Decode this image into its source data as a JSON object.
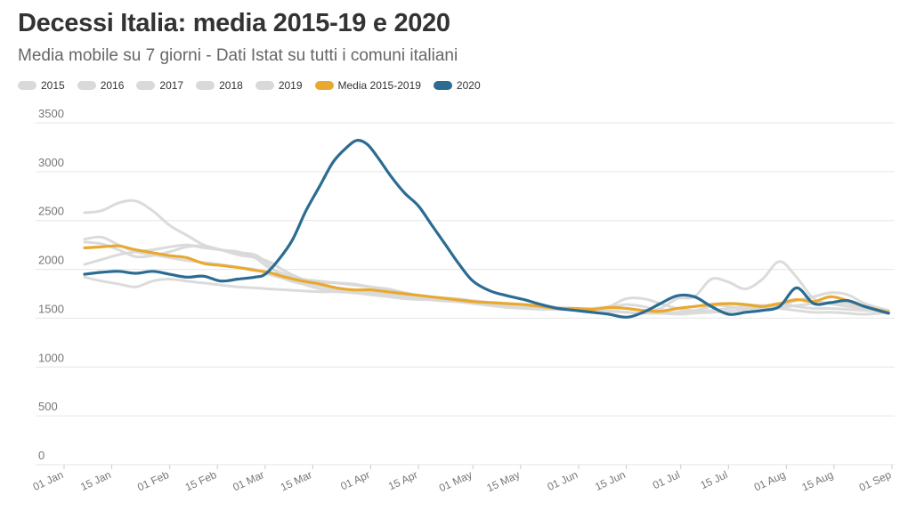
{
  "title": "Decessi Italia: media 2015-19 e 2020",
  "subtitle": "Media mobile su 7 giorni - Dati Istat su tutti i comuni italiani",
  "colors": {
    "background_series": "#d9d9d9",
    "average": "#e8a930",
    "year2020": "#2c6b92",
    "grid": "#e6e6e6",
    "text": "#777777"
  },
  "legend": [
    {
      "label": "2015",
      "color": "#d9d9d9"
    },
    {
      "label": "2016",
      "color": "#d9d9d9"
    },
    {
      "label": "2017",
      "color": "#d9d9d9"
    },
    {
      "label": "2018",
      "color": "#d9d9d9"
    },
    {
      "label": "2019",
      "color": "#d9d9d9"
    },
    {
      "label": "Media 2015-2019",
      "color": "#e8a930"
    },
    {
      "label": "2020",
      "color": "#2c6b92"
    }
  ],
  "chart_data": {
    "type": "line",
    "title": "Decessi Italia: media 2015-19 e 2020",
    "subtitle": "Media mobile su 7 giorni - Dati Istat su tutti i comuni italiani",
    "xlabel": "",
    "ylabel": "",
    "ylim": [
      0,
      3500
    ],
    "yticks": [
      0,
      500,
      1000,
      1500,
      2000,
      2500,
      3000,
      3500
    ],
    "xlim": [
      "01 Jan",
      "01 Sep"
    ],
    "xticks": [
      "01 Jan",
      "15 Jan",
      "01 Feb",
      "15 Feb",
      "01 Mar",
      "15 Mar",
      "01 Apr",
      "15 Apr",
      "01 May",
      "15 May",
      "01 Jun",
      "15 Jun",
      "01 Jul",
      "15 Jul",
      "01 Aug",
      "15 Aug",
      "01 Sep"
    ],
    "grid": true,
    "legend_position": "top-left",
    "series": [
      {
        "name": "2015",
        "color": "#d9d9d9",
        "x": [
          "07 Jan",
          "12 Jan",
          "17 Jan",
          "22 Jan",
          "27 Jan",
          "01 Feb",
          "06 Feb",
          "11 Feb",
          "16 Feb",
          "21 Feb",
          "26 Feb",
          "02 Mar",
          "07 Mar",
          "12 Mar",
          "17 Mar",
          "22 Mar",
          "27 Mar",
          "01 Apr",
          "06 Apr",
          "11 Apr",
          "16 Apr",
          "21 Apr",
          "26 Apr",
          "01 May",
          "06 May",
          "11 May",
          "16 May",
          "21 May",
          "26 May",
          "31 May",
          "05 Jun",
          "10 Jun",
          "15 Jun",
          "20 Jun",
          "25 Jun",
          "30 Jun",
          "05 Jul",
          "10 Jul",
          "15 Jul",
          "20 Jul",
          "25 Jul",
          "30 Jul",
          "04 Aug",
          "09 Aug",
          "14 Aug",
          "19 Aug",
          "24 Aug",
          "31 Aug"
        ],
        "values": [
          2580,
          2600,
          2680,
          2700,
          2600,
          2450,
          2350,
          2250,
          2200,
          2180,
          2120,
          2020,
          1950,
          1900,
          1880,
          1860,
          1840,
          1820,
          1800,
          1760,
          1720,
          1690,
          1670,
          1650,
          1630,
          1610,
          1600,
          1590,
          1590,
          1590,
          1600,
          1610,
          1600,
          1580,
          1600,
          1700,
          1720,
          1900,
          1870,
          1800,
          1900,
          2080,
          1920,
          1700,
          1650,
          1620,
          1600,
          1580
        ]
      },
      {
        "name": "2016",
        "color": "#d9d9d9",
        "x": [
          "07 Jan",
          "12 Jan",
          "17 Jan",
          "22 Jan",
          "27 Jan",
          "01 Feb",
          "06 Feb",
          "11 Feb",
          "16 Feb",
          "21 Feb",
          "26 Feb",
          "02 Mar",
          "07 Mar",
          "12 Mar",
          "17 Mar",
          "22 Mar",
          "27 Mar",
          "01 Apr",
          "06 Apr",
          "11 Apr",
          "16 Apr",
          "21 Apr",
          "26 Apr",
          "01 May",
          "06 May",
          "11 May",
          "16 May",
          "21 May",
          "26 May",
          "31 May",
          "05 Jun",
          "10 Jun",
          "15 Jun",
          "20 Jun",
          "25 Jun",
          "30 Jun",
          "05 Jul",
          "10 Jul",
          "15 Jul",
          "20 Jul",
          "25 Jul",
          "30 Jul",
          "04 Aug",
          "09 Aug",
          "14 Aug",
          "19 Aug",
          "24 Aug",
          "31 Aug"
        ],
        "values": [
          1920,
          1880,
          1850,
          1820,
          1880,
          1900,
          1880,
          1860,
          1840,
          1820,
          1810,
          1800,
          1790,
          1780,
          1770,
          1770,
          1760,
          1740,
          1720,
          1700,
          1690,
          1690,
          1680,
          1660,
          1640,
          1630,
          1620,
          1610,
          1600,
          1590,
          1580,
          1570,
          1560,
          1550,
          1550,
          1560,
          1570,
          1580,
          1600,
          1620,
          1620,
          1600,
          1580,
          1560,
          1560,
          1550,
          1540,
          1560
        ]
      },
      {
        "name": "2017",
        "color": "#d9d9d9",
        "x": [
          "07 Jan",
          "12 Jan",
          "17 Jan",
          "22 Jan",
          "27 Jan",
          "01 Feb",
          "06 Feb",
          "11 Feb",
          "16 Feb",
          "21 Feb",
          "26 Feb",
          "02 Mar",
          "07 Mar",
          "12 Mar",
          "17 Mar",
          "22 Mar",
          "27 Mar",
          "01 Apr",
          "06 Apr",
          "11 Apr",
          "16 Apr",
          "21 Apr",
          "26 Apr",
          "01 May",
          "06 May",
          "11 May",
          "16 May",
          "21 May",
          "26 May",
          "31 May",
          "05 Jun",
          "10 Jun",
          "15 Jun",
          "20 Jun",
          "25 Jun",
          "30 Jun",
          "05 Jul",
          "10 Jul",
          "15 Jul",
          "20 Jul",
          "25 Jul",
          "30 Jul",
          "04 Aug",
          "09 Aug",
          "14 Aug",
          "19 Aug",
          "24 Aug",
          "31 Aug"
        ],
        "values": [
          2310,
          2330,
          2250,
          2180,
          2150,
          2120,
          2090,
          2070,
          2050,
          2020,
          2000,
          1950,
          1900,
          1860,
          1830,
          1800,
          1780,
          1760,
          1740,
          1720,
          1700,
          1680,
          1670,
          1660,
          1650,
          1640,
          1630,
          1620,
          1610,
          1600,
          1600,
          1610,
          1640,
          1620,
          1580,
          1600,
          1620,
          1640,
          1620,
          1600,
          1620,
          1650,
          1620,
          1600,
          1600,
          1590,
          1580,
          1570
        ]
      },
      {
        "name": "2018",
        "color": "#d9d9d9",
        "x": [
          "07 Jan",
          "12 Jan",
          "17 Jan",
          "22 Jan",
          "27 Jan",
          "01 Feb",
          "06 Feb",
          "11 Feb",
          "16 Feb",
          "21 Feb",
          "26 Feb",
          "02 Mar",
          "07 Mar",
          "12 Mar",
          "17 Mar",
          "22 Mar",
          "27 Mar",
          "01 Apr",
          "06 Apr",
          "11 Apr",
          "16 Apr",
          "21 Apr",
          "26 Apr",
          "01 May",
          "06 May",
          "11 May",
          "16 May",
          "21 May",
          "26 May",
          "31 May",
          "05 Jun",
          "10 Jun",
          "15 Jun",
          "20 Jun",
          "25 Jun",
          "30 Jun",
          "05 Jul",
          "10 Jul",
          "15 Jul",
          "20 Jul",
          "25 Jul",
          "30 Jul",
          "04 Aug",
          "09 Aug",
          "14 Aug",
          "19 Aug",
          "24 Aug",
          "31 Aug"
        ],
        "values": [
          2050,
          2100,
          2150,
          2180,
          2200,
          2230,
          2250,
          2220,
          2200,
          2170,
          2150,
          2050,
          1900,
          1850,
          1800,
          1780,
          1760,
          1760,
          1750,
          1740,
          1730,
          1700,
          1680,
          1660,
          1640,
          1630,
          1620,
          1610,
          1600,
          1600,
          1590,
          1580,
          1560,
          1550,
          1550,
          1540,
          1550,
          1560,
          1570,
          1590,
          1600,
          1610,
          1630,
          1650,
          1660,
          1650,
          1600,
          1560
        ]
      },
      {
        "name": "2019",
        "color": "#d9d9d9",
        "x": [
          "07 Jan",
          "12 Jan",
          "17 Jan",
          "22 Jan",
          "27 Jan",
          "01 Feb",
          "06 Feb",
          "11 Feb",
          "16 Feb",
          "21 Feb",
          "26 Feb",
          "02 Mar",
          "07 Mar",
          "12 Mar",
          "17 Mar",
          "22 Mar",
          "27 Mar",
          "01 Apr",
          "06 Apr",
          "11 Apr",
          "16 Apr",
          "21 Apr",
          "26 Apr",
          "01 May",
          "06 May",
          "11 May",
          "16 May",
          "21 May",
          "26 May",
          "31 May",
          "05 Jun",
          "10 Jun",
          "15 Jun",
          "20 Jun",
          "25 Jun",
          "30 Jun",
          "05 Jul",
          "10 Jul",
          "15 Jul",
          "20 Jul",
          "25 Jul",
          "30 Jul",
          "04 Aug",
          "09 Aug",
          "14 Aug",
          "19 Aug",
          "24 Aug",
          "31 Aug"
        ],
        "values": [
          2280,
          2260,
          2200,
          2130,
          2140,
          2180,
          2230,
          2240,
          2200,
          2150,
          2120,
          2080,
          1980,
          1900,
          1870,
          1860,
          1850,
          1820,
          1790,
          1760,
          1730,
          1710,
          1700,
          1680,
          1660,
          1640,
          1630,
          1620,
          1610,
          1600,
          1600,
          1620,
          1700,
          1700,
          1650,
          1600,
          1580,
          1620,
          1650,
          1640,
          1630,
          1640,
          1680,
          1720,
          1760,
          1740,
          1650,
          1580
        ]
      },
      {
        "name": "Media 2015-2019",
        "color": "#e8a930",
        "x": [
          "07 Jan",
          "12 Jan",
          "17 Jan",
          "22 Jan",
          "27 Jan",
          "01 Feb",
          "06 Feb",
          "11 Feb",
          "16 Feb",
          "21 Feb",
          "26 Feb",
          "02 Mar",
          "07 Mar",
          "12 Mar",
          "17 Mar",
          "22 Mar",
          "27 Mar",
          "01 Apr",
          "06 Apr",
          "11 Apr",
          "16 Apr",
          "21 Apr",
          "26 Apr",
          "01 May",
          "06 May",
          "11 May",
          "16 May",
          "21 May",
          "26 May",
          "31 May",
          "05 Jun",
          "10 Jun",
          "15 Jun",
          "20 Jun",
          "25 Jun",
          "30 Jun",
          "05 Jul",
          "10 Jul",
          "15 Jul",
          "20 Jul",
          "25 Jul",
          "30 Jul",
          "04 Aug",
          "09 Aug",
          "14 Aug",
          "19 Aug",
          "24 Aug",
          "31 Aug"
        ],
        "values": [
          2220,
          2230,
          2240,
          2200,
          2170,
          2140,
          2120,
          2060,
          2040,
          2020,
          1990,
          1970,
          1920,
          1880,
          1850,
          1810,
          1790,
          1790,
          1770,
          1750,
          1730,
          1710,
          1690,
          1670,
          1660,
          1650,
          1640,
          1620,
          1600,
          1600,
          1590,
          1610,
          1600,
          1580,
          1570,
          1600,
          1620,
          1640,
          1650,
          1640,
          1620,
          1650,
          1690,
          1670,
          1720,
          1680,
          1620,
          1560
        ]
      },
      {
        "name": "2020",
        "color": "#2c6b92",
        "x": [
          "07 Jan",
          "12 Jan",
          "17 Jan",
          "22 Jan",
          "27 Jan",
          "01 Feb",
          "06 Feb",
          "11 Feb",
          "16 Feb",
          "21 Feb",
          "26 Feb",
          "01 Mar",
          "05 Mar",
          "09 Mar",
          "13 Mar",
          "17 Mar",
          "21 Mar",
          "25 Mar",
          "28 Mar",
          "31 Mar",
          "03 Apr",
          "07 Apr",
          "11 Apr",
          "15 Apr",
          "19 Apr",
          "23 Apr",
          "27 Apr",
          "01 May",
          "06 May",
          "11 May",
          "16 May",
          "21 May",
          "26 May",
          "31 May",
          "05 Jun",
          "10 Jun",
          "15 Jun",
          "20 Jun",
          "25 Jun",
          "30 Jun",
          "05 Jul",
          "10 Jul",
          "15 Jul",
          "20 Jul",
          "25 Jul",
          "30 Jul",
          "04 Aug",
          "09 Aug",
          "14 Aug",
          "19 Aug",
          "24 Aug",
          "31 Aug"
        ],
        "values": [
          1950,
          1970,
          1980,
          1960,
          1980,
          1950,
          1920,
          1930,
          1880,
          1900,
          1920,
          1950,
          2100,
          2300,
          2600,
          2850,
          3100,
          3250,
          3320,
          3280,
          3150,
          2950,
          2780,
          2650,
          2450,
          2250,
          2050,
          1880,
          1780,
          1730,
          1690,
          1640,
          1600,
          1580,
          1560,
          1540,
          1510,
          1560,
          1650,
          1730,
          1720,
          1620,
          1540,
          1560,
          1580,
          1620,
          1810,
          1650,
          1660,
          1680,
          1620,
          1550
        ]
      }
    ]
  }
}
